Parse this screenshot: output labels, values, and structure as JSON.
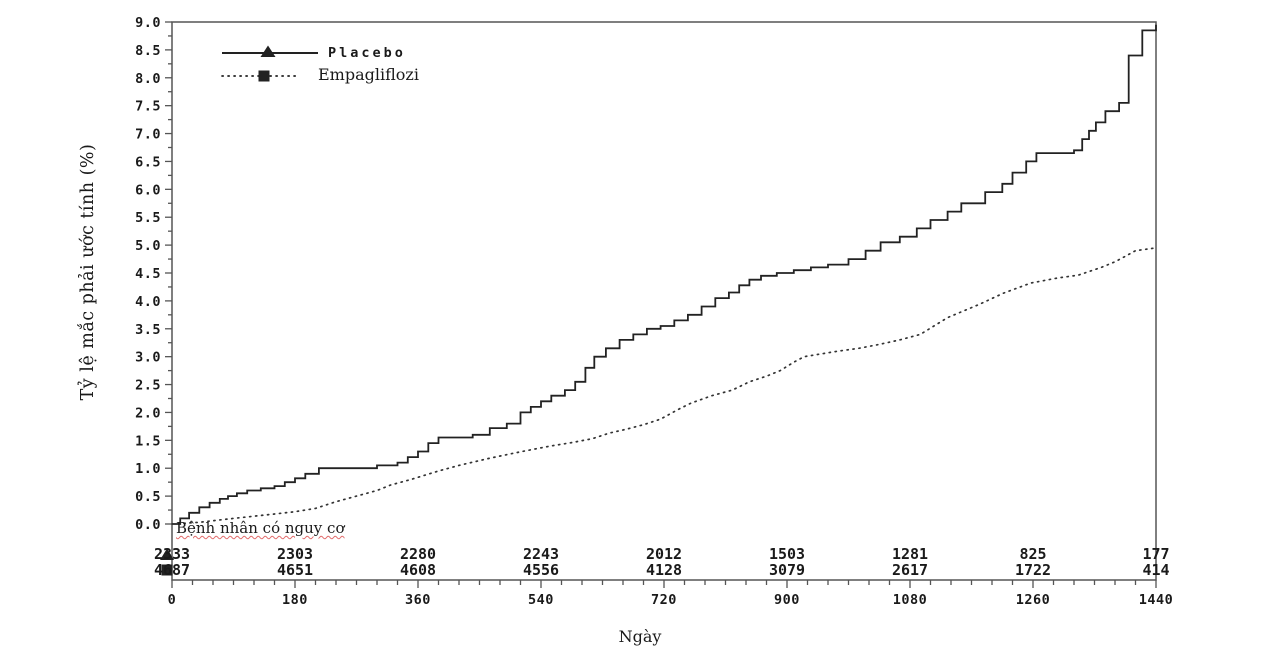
{
  "chart_data": {
    "type": "line",
    "subtype": "kaplan-meier-cumulative-incidence",
    "title": "",
    "xlabel": "Ngày",
    "ylabel": "Tỷ lệ mắc phải ước tính (%)",
    "xlim": [
      0,
      1440
    ],
    "ylim": [
      0,
      9
    ],
    "x_ticks": [
      0,
      180,
      360,
      540,
      720,
      900,
      1080,
      1260,
      1440
    ],
    "x_minor_tick_step": 30,
    "y_tick_step": 0.5,
    "y_minor_tick_step": 0.25,
    "y_tick_decimals": 1,
    "grid": false,
    "legend_position": "top-left-inside",
    "series": [
      {
        "name": "Placebo",
        "line_style": "solid",
        "marker": "filled-triangle",
        "interpolation": "step-after",
        "color": "#222222",
        "points": [
          [
            0,
            0
          ],
          [
            12,
            0.1
          ],
          [
            25,
            0.2
          ],
          [
            40,
            0.3
          ],
          [
            55,
            0.38
          ],
          [
            70,
            0.45
          ],
          [
            82,
            0.5
          ],
          [
            95,
            0.55
          ],
          [
            110,
            0.6
          ],
          [
            130,
            0.64
          ],
          [
            150,
            0.68
          ],
          [
            165,
            0.75
          ],
          [
            180,
            0.82
          ],
          [
            195,
            0.9
          ],
          [
            215,
            1.0
          ],
          [
            300,
            1.05
          ],
          [
            330,
            1.1
          ],
          [
            345,
            1.2
          ],
          [
            360,
            1.3
          ],
          [
            375,
            1.45
          ],
          [
            390,
            1.55
          ],
          [
            440,
            1.6
          ],
          [
            465,
            1.72
          ],
          [
            490,
            1.8
          ],
          [
            510,
            2.0
          ],
          [
            525,
            2.1
          ],
          [
            540,
            2.2
          ],
          [
            555,
            2.3
          ],
          [
            575,
            2.4
          ],
          [
            590,
            2.55
          ],
          [
            605,
            2.8
          ],
          [
            618,
            3.0
          ],
          [
            635,
            3.15
          ],
          [
            655,
            3.3
          ],
          [
            675,
            3.4
          ],
          [
            695,
            3.5
          ],
          [
            715,
            3.55
          ],
          [
            735,
            3.65
          ],
          [
            755,
            3.75
          ],
          [
            775,
            3.9
          ],
          [
            795,
            4.05
          ],
          [
            815,
            4.15
          ],
          [
            830,
            4.28
          ],
          [
            845,
            4.38
          ],
          [
            862,
            4.45
          ],
          [
            885,
            4.5
          ],
          [
            910,
            4.55
          ],
          [
            935,
            4.6
          ],
          [
            960,
            4.65
          ],
          [
            990,
            4.75
          ],
          [
            1015,
            4.9
          ],
          [
            1037,
            5.05
          ],
          [
            1065,
            5.15
          ],
          [
            1090,
            5.3
          ],
          [
            1110,
            5.45
          ],
          [
            1135,
            5.6
          ],
          [
            1155,
            5.75
          ],
          [
            1190,
            5.95
          ],
          [
            1215,
            6.1
          ],
          [
            1230,
            6.3
          ],
          [
            1250,
            6.5
          ],
          [
            1265,
            6.65
          ],
          [
            1320,
            6.7
          ],
          [
            1332,
            6.9
          ],
          [
            1342,
            7.05
          ],
          [
            1352,
            7.2
          ],
          [
            1366,
            7.4
          ],
          [
            1386,
            7.55
          ],
          [
            1400,
            8.4
          ],
          [
            1420,
            8.85
          ],
          [
            1440,
            8.95
          ]
        ]
      },
      {
        "name": "Empagliflozi",
        "line_style": "dotted",
        "marker": "filled-square",
        "interpolation": "linear",
        "color": "#333333",
        "points": [
          [
            0,
            0
          ],
          [
            40,
            0.03
          ],
          [
            60,
            0.06
          ],
          [
            90,
            0.1
          ],
          [
            120,
            0.14
          ],
          [
            150,
            0.18
          ],
          [
            180,
            0.22
          ],
          [
            210,
            0.28
          ],
          [
            240,
            0.4
          ],
          [
            270,
            0.5
          ],
          [
            300,
            0.6
          ],
          [
            320,
            0.7
          ],
          [
            350,
            0.8
          ],
          [
            390,
            0.95
          ],
          [
            420,
            1.05
          ],
          [
            465,
            1.18
          ],
          [
            500,
            1.27
          ],
          [
            525,
            1.33
          ],
          [
            555,
            1.4
          ],
          [
            585,
            1.46
          ],
          [
            615,
            1.53
          ],
          [
            640,
            1.63
          ],
          [
            665,
            1.7
          ],
          [
            690,
            1.78
          ],
          [
            715,
            1.88
          ],
          [
            740,
            2.05
          ],
          [
            760,
            2.17
          ],
          [
            790,
            2.3
          ],
          [
            820,
            2.4
          ],
          [
            845,
            2.55
          ],
          [
            870,
            2.65
          ],
          [
            890,
            2.75
          ],
          [
            910,
            2.9
          ],
          [
            925,
            3.0
          ],
          [
            950,
            3.05
          ],
          [
            975,
            3.1
          ],
          [
            1005,
            3.15
          ],
          [
            1035,
            3.22
          ],
          [
            1065,
            3.3
          ],
          [
            1095,
            3.4
          ],
          [
            1135,
            3.7
          ],
          [
            1180,
            3.93
          ],
          [
            1217,
            4.14
          ],
          [
            1257,
            4.32
          ],
          [
            1296,
            4.41
          ],
          [
            1326,
            4.46
          ],
          [
            1360,
            4.6
          ],
          [
            1380,
            4.7
          ],
          [
            1395,
            4.8
          ],
          [
            1410,
            4.9
          ],
          [
            1440,
            4.95
          ]
        ]
      }
    ],
    "at_risk_table": {
      "header": "Bệnh nhân có nguy cơ",
      "x_positions": [
        0,
        180,
        360,
        540,
        720,
        900,
        1080,
        1260,
        1440
      ],
      "rows": [
        {
          "series": "Placebo",
          "marker": "filled-triangle",
          "values": [
            "2333",
            "2303",
            "2280",
            "2243",
            "2012",
            "1503",
            "1281",
            "825",
            "177"
          ]
        },
        {
          "series": "Empagliflozi",
          "marker": "filled-square",
          "values": [
            "4687",
            "4651",
            "4608",
            "4556",
            "4128",
            "3079",
            "2617",
            "1722",
            "414"
          ]
        }
      ]
    },
    "colors": {
      "axis": "#555555",
      "text": "#1a1a1a",
      "curve": "#222222",
      "spellcheck_underline": "#dc5050"
    }
  }
}
